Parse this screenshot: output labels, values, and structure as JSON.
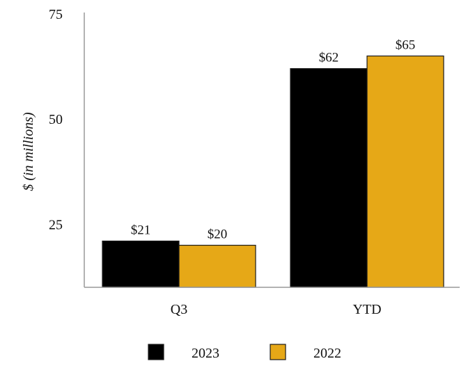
{
  "chart_data": {
    "type": "bar",
    "title": "",
    "xlabel": "",
    "ylabel": "$ (in millions)",
    "ylim": [
      10,
      75
    ],
    "yticks": [
      25,
      50,
      75
    ],
    "categories": [
      "Q3",
      "YTD"
    ],
    "series": [
      {
        "name": "2023",
        "color": "#000000",
        "values": [
          21,
          62
        ],
        "labels": [
          "$21",
          "$62"
        ]
      },
      {
        "name": "2022",
        "color": "#E6A817",
        "values": [
          20,
          65
        ],
        "labels": [
          "$20",
          "$65"
        ]
      }
    ],
    "legend_position": "bottom-center"
  }
}
